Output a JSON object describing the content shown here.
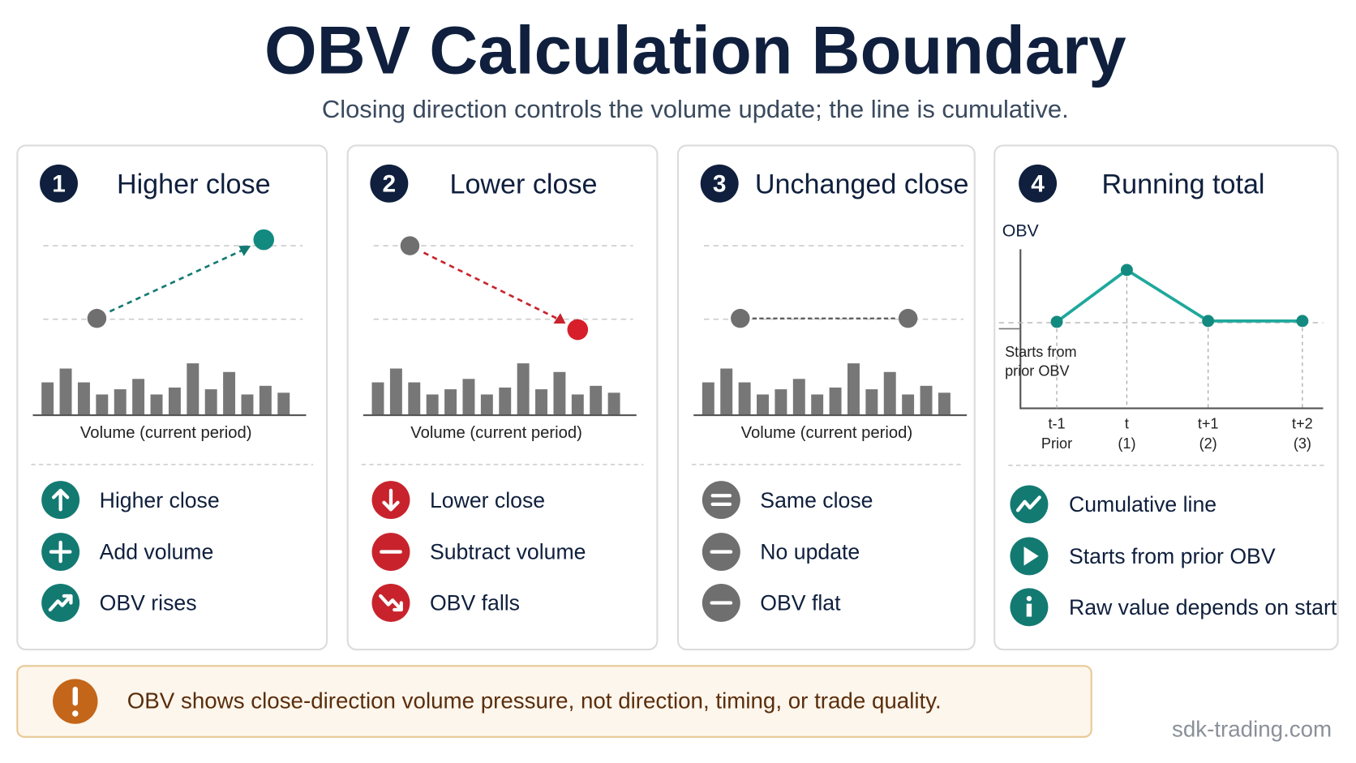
{
  "title": "OBV Calculation Boundary",
  "subtitle": "Closing direction controls the volume update; the line is cumulative.",
  "panels": [
    {
      "number": "1",
      "heading": "Higher close",
      "volume_label": "Volume (current period)",
      "items": [
        "Higher close",
        "Add volume",
        "OBV rises"
      ]
    },
    {
      "number": "2",
      "heading": "Lower close",
      "volume_label": "Volume (current period)",
      "items": [
        "Lower close",
        "Subtract volume",
        "OBV falls"
      ]
    },
    {
      "number": "3",
      "heading": "Unchanged close",
      "volume_label": "Volume (current period)",
      "items": [
        "Same close",
        "No update",
        "OBV flat"
      ]
    },
    {
      "number": "4",
      "heading": "Running total",
      "axis_label": "OBV",
      "annotation": [
        "Starts from",
        "prior OBV"
      ],
      "x_labels": [
        {
          "top": "t-1",
          "bottom": "Prior"
        },
        {
          "top": "t",
          "bottom": "(1)"
        },
        {
          "top": "t+1",
          "bottom": "(2)"
        },
        {
          "top": "t+2",
          "bottom": "(3)"
        }
      ],
      "items": [
        "Cumulative line",
        "Starts from prior OBV",
        "Raw value depends on start"
      ]
    }
  ],
  "note": "OBV shows close-direction volume pressure, not direction, timing, or trade quality.",
  "watermark": "sdk-trading.com"
}
